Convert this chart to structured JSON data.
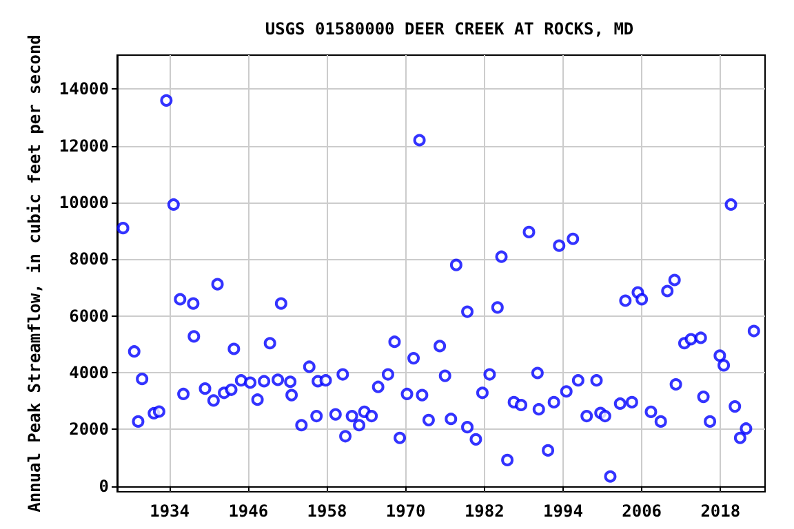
{
  "chart_data": {
    "type": "scatter",
    "title": "USGS 01580000 DEER CREEK AT ROCKS, MD",
    "ylabel": "Annual Peak Streamflow, in cubic feet per second",
    "x": [
      1926.9,
      1928.6,
      1929.2,
      1929.8,
      1931.6,
      1932.4,
      1933.5,
      1934.6,
      1935.6,
      1936.1,
      1937.6,
      1937.7,
      1939.4,
      1940.7,
      1941.3,
      1942.3,
      1943.4,
      1943.8,
      1944.9,
      1946.3,
      1947.4,
      1948.4,
      1949.3,
      1950.5,
      1951.0,
      1952.4,
      1952.6,
      1954.1,
      1955.3,
      1956.4,
      1956.6,
      1957.8,
      1959.3,
      1960.4,
      1960.8,
      1961.8,
      1962.9,
      1963.7,
      1964.8,
      1965.8,
      1967.3,
      1968.3,
      1969.1,
      1970.2,
      1971.2,
      1972.1,
      1972.5,
      1973.5,
      1975.2,
      1976.0,
      1976.9,
      1977.7,
      1979.4,
      1979.4,
      1980.7,
      1981.7,
      1982.8,
      1984.0,
      1984.6,
      1985.5,
      1986.5,
      1987.6,
      1988.8,
      1990.1,
      1990.3,
      1991.7,
      1992.6,
      1993.4,
      1994.5,
      1995.5,
      1996.3,
      1997.6,
      1999.1,
      1999.7,
      2000.4,
      2001.2,
      2002.7,
      2003.5,
      2004.5,
      2005.4,
      2006.0,
      2007.4,
      2008.9,
      2009.9,
      2011.0,
      2011.2,
      2012.5,
      2013.5,
      2015.0,
      2015.4,
      2016.4,
      2017.9,
      2018.5,
      2019.6,
      2020.2,
      2021.0,
      2021.9,
      2023.1
    ],
    "values": [
      9100,
      4750,
      2280,
      3780,
      2570,
      2630,
      13600,
      9930,
      6590,
      3250,
      6440,
      5280,
      3440,
      3020,
      7120,
      3290,
      3400,
      4840,
      3730,
      3650,
      3050,
      3700,
      5040,
      3750,
      6440,
      3680,
      3210,
      2150,
      4210,
      2470,
      3700,
      3730,
      2530,
      3940,
      1760,
      2470,
      2150,
      2620,
      2470,
      3500,
      3940,
      5090,
      1700,
      3250,
      4510,
      12200,
      3210,
      2330,
      4940,
      3890,
      2370,
      7800,
      6150,
      2080,
      1650,
      3290,
      3940,
      6300,
      8090,
      920,
      2960,
      2860,
      8960,
      3990,
      2710,
      1260,
      2960,
      8480,
      3340,
      8720,
      3730,
      2470,
      3730,
      2580,
      2470,
      340,
      2910,
      6540,
      2960,
      6830,
      6590,
      2620,
      2280,
      6880,
      7270,
      3590,
      5040,
      5180,
      5230,
      3150,
      2280,
      4600,
      4260,
      9930,
      2810,
      1700,
      2030,
      5470
    ],
    "color": "#0000ff",
    "marker": "circle",
    "xlim": [
      1926,
      2024.8
    ],
    "xticks": [
      1934,
      1946,
      1958,
      1970,
      1982,
      1994,
      2006,
      2018
    ],
    "ylim": [
      -200,
      15200
    ],
    "yticks": [
      0,
      2000,
      4000,
      6000,
      8000,
      10000,
      12000,
      14000
    ],
    "grid": true
  }
}
